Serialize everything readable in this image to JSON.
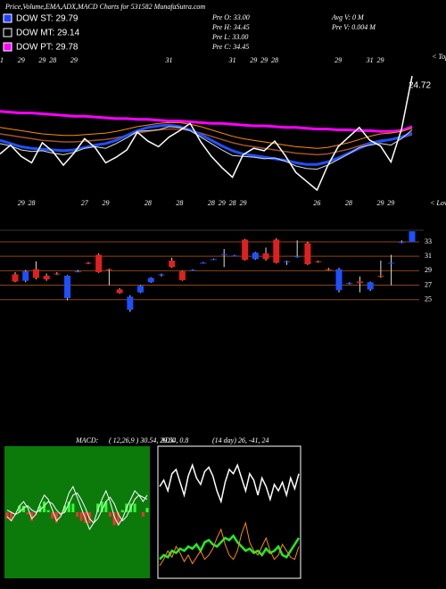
{
  "header": {
    "title": "Price,Volume,EMA,ADX,MACD Charts for 531582  MunafaSutra.com"
  },
  "legend": [
    {
      "label": "DOW ST: 29.79",
      "color": "#2040ff"
    },
    {
      "label": "DOW MT: 29.14",
      "color": "#000000"
    },
    {
      "label": "DOW PT: 29.78",
      "color": "#ff00ff"
    }
  ],
  "info": {
    "left": [
      "Pre  O: 33.00",
      "Pre  H: 34.45",
      "Pre  L: 33.00",
      "Pre  C: 34.45"
    ],
    "right": [
      "Avg V: 0  M",
      "Pre  V: 0.004  M"
    ]
  },
  "chart_data": [
    {
      "type": "line",
      "ylim": [
        20,
        40
      ],
      "annotation": "24.72",
      "tops_label": "< Tops",
      "lows_label": "< Lows",
      "series": [
        {
          "color": "#ff00ff",
          "width": 3,
          "values": [
            32.8,
            32.7,
            32.6,
            32.6,
            32.5,
            32.4,
            32.3,
            32.2,
            32.2,
            32.1,
            32.0,
            31.9,
            31.9,
            31.8,
            31.8,
            31.7,
            31.6,
            31.6,
            31.5,
            31.4,
            31.3,
            31.3,
            31.2,
            31.1,
            31.0,
            31.0,
            30.9,
            30.8,
            30.8,
            30.7,
            30.6,
            30.6,
            30.5,
            30.5,
            30.4,
            30.4,
            30.3,
            30.3,
            30.4,
            30.9
          ]
        },
        {
          "color": "#ff8c00",
          "width": 1,
          "values": [
            30.8,
            30.6,
            30.4,
            30.2,
            30.0,
            29.9,
            29.8,
            29.8,
            29.9,
            30.0,
            30.1,
            30.3,
            30.6,
            30.9,
            31.1,
            31.3,
            31.4,
            31.4,
            31.2,
            30.9,
            30.5,
            30.1,
            29.7,
            29.4,
            29.2,
            29.0,
            28.8,
            28.6,
            28.4,
            28.3,
            28.2,
            28.3,
            28.6,
            28.9,
            29.3,
            29.7,
            30.0,
            30.1,
            30.3,
            30.7
          ]
        },
        {
          "color": "#a0522d",
          "width": 1.5,
          "values": [
            30.0,
            29.8,
            29.6,
            29.4,
            29.2,
            29.1,
            29.0,
            29.0,
            29.1,
            29.2,
            29.3,
            29.5,
            29.8,
            30.1,
            30.3,
            30.5,
            30.6,
            30.6,
            30.4,
            30.1,
            29.7,
            29.3,
            28.9,
            28.6,
            28.4,
            28.2,
            28.0,
            27.8,
            27.6,
            27.5,
            27.4,
            27.5,
            27.8,
            28.1,
            28.5,
            28.9,
            29.2,
            29.3,
            29.5,
            29.9
          ]
        },
        {
          "color": "#2050ff",
          "width": 3,
          "values": [
            29.2,
            28.8,
            28.4,
            28.2,
            28.1,
            28.0,
            27.9,
            28.0,
            28.3,
            28.6,
            28.8,
            29.2,
            29.8,
            30.4,
            30.8,
            31.0,
            31.1,
            30.9,
            30.5,
            29.9,
            29.2,
            28.5,
            27.9,
            27.5,
            27.3,
            27.1,
            26.9,
            26.7,
            26.4,
            26.2,
            26.2,
            26.5,
            27.0,
            27.6,
            28.2,
            28.8,
            29.1,
            29.3,
            29.6,
            30.1
          ]
        },
        {
          "color": "#dddddd",
          "width": 1,
          "values": [
            28.8,
            28.5,
            28.0,
            27.8,
            27.9,
            27.6,
            27.4,
            27.7,
            28.2,
            28.4,
            28.2,
            28.8,
            29.5,
            30.3,
            30.4,
            30.5,
            30.9,
            30.8,
            30.4,
            29.6,
            28.8,
            28.0,
            27.3,
            27.2,
            27.1,
            26.9,
            27.0,
            26.6,
            26.0,
            25.7,
            25.6,
            26.1,
            26.8,
            27.5,
            28.3,
            28.6,
            28.8,
            28.6,
            29.4,
            30.5
          ]
        },
        {
          "color": "#ffffff",
          "width": 1.5,
          "values": [
            27.5,
            28.6,
            27.2,
            26.4,
            28.9,
            27.8,
            26.1,
            27.6,
            29.4,
            28.3,
            26.4,
            27.1,
            28.0,
            30.2,
            29.1,
            28.4,
            29.6,
            30.4,
            31.3,
            29.0,
            27.2,
            25.8,
            24.6,
            27.4,
            28.2,
            27.9,
            29.1,
            27.3,
            25.2,
            24.1,
            23.0,
            26.0,
            28.4,
            29.6,
            30.8,
            29.2,
            28.5,
            26.5,
            30.6,
            37.2
          ]
        }
      ],
      "tops": [
        31,
        null,
        29,
        null,
        29,
        28,
        null,
        29,
        null,
        null,
        null,
        null,
        null,
        null,
        null,
        null,
        31,
        null,
        null,
        null,
        null,
        null,
        31,
        null,
        29,
        29,
        28,
        null,
        null,
        null,
        null,
        null,
        29,
        null,
        null,
        31,
        29,
        null,
        null,
        null
      ],
      "lows": [
        null,
        null,
        29,
        28,
        null,
        null,
        null,
        null,
        27,
        null,
        29,
        null,
        null,
        null,
        28,
        null,
        null,
        28,
        null,
        null,
        28,
        29,
        28,
        29,
        null,
        null,
        null,
        null,
        null,
        null,
        26,
        null,
        null,
        28,
        null,
        null,
        29,
        29,
        null,
        null
      ]
    },
    {
      "type": "candlestick",
      "ylim": [
        22,
        34.6
      ],
      "yticks": [
        33,
        31,
        29,
        27,
        25
      ],
      "up_color": "#1e50ff",
      "down_color": "#e02020",
      "open": [
        28.5,
        27.6,
        29.2,
        28.3,
        28.6,
        25.2,
        28.9,
        30.1,
        31.2,
        29.2,
        26.4,
        23.6,
        26.0,
        27.4,
        28.4,
        30.4,
        28.9,
        29.1,
        30.1,
        30.6,
        31.2,
        31.1,
        33.3,
        30.6,
        31.4,
        33.3,
        30.2,
        30.9,
        32.8,
        30.3,
        29.2,
        26.3,
        27.2,
        27.5,
        26.4,
        28.3,
        30.0,
        32.9,
        33.0
      ],
      "high": [
        28.8,
        29.1,
        30.3,
        28.6,
        28.8,
        28.4,
        29.1,
        30.2,
        31.4,
        29.3,
        26.6,
        25.6,
        27.0,
        28.1,
        28.6,
        30.8,
        29.0,
        29.2,
        30.2,
        30.7,
        32.0,
        31.2,
        33.4,
        31.6,
        32.2,
        33.5,
        30.4,
        33.2,
        33.0,
        30.4,
        29.4,
        29.4,
        27.4,
        28.2,
        27.5,
        30.4,
        31.2,
        33.2,
        34.45
      ],
      "low": [
        27.4,
        27.4,
        27.8,
        27.6,
        28.4,
        24.9,
        28.8,
        29.9,
        28.7,
        27.0,
        25.8,
        23.3,
        25.9,
        27.3,
        28.2,
        29.4,
        27.6,
        29.0,
        30.0,
        30.5,
        29.5,
        31.0,
        30.4,
        30.5,
        30.4,
        30.0,
        29.8,
        30.8,
        29.8,
        30.1,
        29.0,
        26.0,
        27.1,
        26.0,
        26.2,
        28.0,
        27.0,
        32.8,
        33.0
      ],
      "close": [
        27.5,
        28.9,
        28.0,
        27.8,
        28.5,
        28.3,
        28.9,
        30.0,
        28.8,
        29.1,
        25.9,
        25.4,
        26.9,
        28.0,
        28.5,
        29.5,
        27.7,
        29.1,
        30.1,
        30.6,
        31.3,
        31.1,
        30.5,
        31.5,
        30.6,
        30.1,
        30.3,
        31.0,
        29.9,
        30.2,
        29.1,
        29.2,
        27.3,
        27.3,
        27.4,
        28.2,
        30.1,
        33.0,
        34.45
      ]
    },
    {
      "type": "macd",
      "title": "MACD:",
      "params": "( 12,26,9 ) 30.54, 29.54, 0.8",
      "ylim": [
        -3,
        3
      ],
      "background": "#0b7a0b",
      "series": [
        {
          "color": "#ffffff",
          "values": [
            -0.2,
            -0.4,
            -0.1,
            0.3,
            0.5,
            0.2,
            -0.3,
            -0.1,
            0.4,
            0.8,
            0.6,
            0.1,
            -0.4,
            -0.2,
            0.3,
            0.9,
            1.2,
            0.7,
            0.2,
            -0.3,
            -0.8,
            -0.5,
            0.1,
            0.6,
            1.0,
            0.5,
            -0.2,
            -0.6,
            -0.3,
            0.2,
            0.6,
            1.0,
            0.8,
            0.5,
            0.8
          ]
        },
        {
          "color": "#ffffff",
          "values": [
            0.1,
            0.0,
            -0.1,
            0.0,
            0.2,
            0.3,
            0.1,
            0.0,
            0.1,
            0.3,
            0.5,
            0.4,
            0.1,
            -0.1,
            0.0,
            0.4,
            0.8,
            0.9,
            0.6,
            0.2,
            -0.3,
            -0.5,
            -0.3,
            0.1,
            0.5,
            0.7,
            0.4,
            -0.1,
            -0.4,
            -0.2,
            0.2,
            0.6,
            0.8,
            0.7,
            0.6
          ]
        }
      ],
      "histogram": [
        -0.3,
        -0.4,
        0.0,
        0.3,
        0.3,
        -0.1,
        -0.4,
        -0.1,
        0.3,
        0.5,
        0.1,
        -0.3,
        -0.5,
        -0.1,
        0.3,
        0.5,
        0.4,
        -0.2,
        -0.4,
        -0.5,
        -0.5,
        0.0,
        0.4,
        0.5,
        0.5,
        -0.2,
        -0.6,
        -0.5,
        0.1,
        0.4,
        0.4,
        0.4,
        0.0,
        -0.2,
        0.2
      ],
      "up_color": "#33ff33",
      "down_color": "#ff3030"
    },
    {
      "type": "adx",
      "title": "ADX",
      "params": "(14 day) 26, -41, 24",
      "ylim": [
        0,
        60
      ],
      "series": [
        {
          "color": "#ffffff",
          "width": 1.5,
          "values": [
            42,
            45,
            40,
            48,
            50,
            44,
            38,
            47,
            52,
            46,
            43,
            49,
            51,
            47,
            40,
            35,
            44,
            50,
            48,
            52,
            46,
            40,
            48,
            45,
            38,
            46,
            42,
            36,
            43,
            40,
            44,
            38,
            46,
            41,
            48
          ]
        },
        {
          "color": "#22ee22",
          "width": 2.5,
          "values": [
            8,
            10,
            9,
            12,
            11,
            13,
            12,
            14,
            13,
            15,
            12,
            16,
            17,
            15,
            14,
            16,
            18,
            17,
            19,
            16,
            14,
            12,
            13,
            11,
            12,
            10,
            13,
            11,
            12,
            14,
            10,
            9,
            12,
            15,
            18
          ]
        },
        {
          "color": "#ff8c00",
          "width": 1,
          "values": [
            5,
            8,
            12,
            9,
            14,
            11,
            7,
            10,
            6,
            9,
            12,
            8,
            10,
            13,
            18,
            22,
            15,
            10,
            8,
            12,
            20,
            25,
            16,
            12,
            10,
            14,
            18,
            12,
            8,
            10,
            15,
            12,
            9,
            8,
            14
          ]
        }
      ]
    }
  ]
}
